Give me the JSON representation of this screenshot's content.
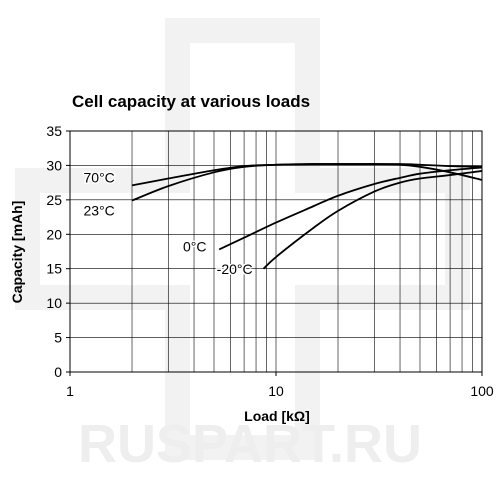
{
  "colors": {
    "background": "#ffffff",
    "axis": "#000000",
    "grid": "#000000",
    "series": "#000000",
    "watermark": "#eeeeee"
  },
  "watermark": {
    "text": "RUSPART.RU"
  },
  "chart_data": {
    "type": "line",
    "title": "Cell capacity at various loads",
    "xlabel": "Load [kΩ]",
    "ylabel": "Capacity [mAh]",
    "xscale": "log",
    "xlim": [
      1,
      100
    ],
    "ylim": [
      0,
      35
    ],
    "xticks": [
      1,
      10,
      100
    ],
    "xtick_labels": [
      "1",
      "10",
      "100"
    ],
    "yticks": [
      0,
      5,
      10,
      15,
      20,
      25,
      30,
      35
    ],
    "ytick_labels": [
      "0",
      "5",
      "10",
      "15",
      "20",
      "25",
      "30",
      "35"
    ],
    "grid": true,
    "legend": "none",
    "series": [
      {
        "name": "70°C",
        "x": [
          2,
          3,
          5,
          7,
          10,
          15,
          20,
          30,
          40,
          50,
          70,
          100
        ],
        "y": [
          27.1,
          28.1,
          29.3,
          29.9,
          30.1,
          30.2,
          30.2,
          30.2,
          30.1,
          29.8,
          29.0,
          27.9
        ]
      },
      {
        "name": "23°C",
        "x": [
          2,
          3,
          5,
          7,
          10,
          15,
          20,
          30,
          40,
          50,
          70,
          100
        ],
        "y": [
          24.9,
          27.0,
          29.0,
          29.8,
          30.1,
          30.2,
          30.2,
          30.2,
          30.2,
          30.1,
          29.9,
          29.8
        ]
      },
      {
        "name": "0°C",
        "x": [
          5.3,
          7,
          10,
          15,
          20,
          30,
          40,
          50,
          70,
          100
        ],
        "y": [
          17.8,
          19.5,
          21.7,
          24.0,
          25.6,
          27.3,
          28.2,
          28.8,
          29.3,
          29.7
        ]
      },
      {
        "name": "-20°C",
        "x": [
          8.7,
          10,
          15,
          20,
          30,
          40,
          50,
          70,
          100
        ],
        "y": [
          15.0,
          16.7,
          20.8,
          23.4,
          26.2,
          27.5,
          28.1,
          28.6,
          29.2
        ]
      }
    ],
    "annotations": [
      {
        "text": "70°C",
        "series": "70°C",
        "x": 1.65,
        "y": 27.5
      },
      {
        "text": "23°C",
        "series": "23°C",
        "x": 1.65,
        "y": 22.7
      },
      {
        "text": "0°C",
        "series": "0°C",
        "x": 4.6,
        "y": 17.5
      },
      {
        "text": "-20°C",
        "series": "-20°C",
        "x": 7.7,
        "y": 14.2
      }
    ]
  }
}
